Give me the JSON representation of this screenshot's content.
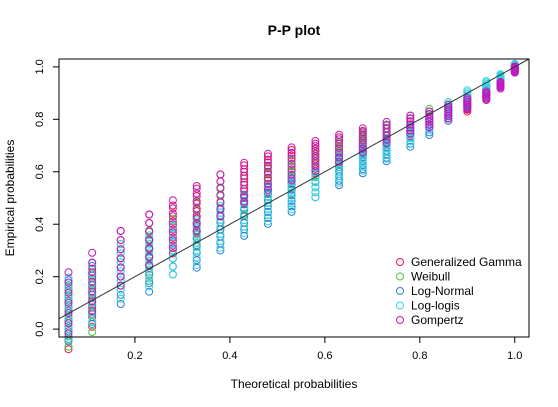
{
  "chart_data": {
    "type": "scatter",
    "title": "P-P plot",
    "xlabel": "Theoretical probabilities",
    "ylabel": "Empirical probabilities",
    "xlim": [
      0.04,
      1.03
    ],
    "ylim": [
      -0.03,
      1.03
    ],
    "x_ticks": [
      "0.2",
      "0.4",
      "0.6",
      "0.8",
      "1.0"
    ],
    "y_ticks": [
      "0.0",
      "0.2",
      "0.4",
      "0.6",
      "0.8",
      "1.0"
    ],
    "grid": false,
    "legend_position": "bottom-right",
    "reference_line": {
      "from": [
        0,
        0
      ],
      "to": [
        1,
        1
      ],
      "color": "#333333"
    },
    "series": [
      {
        "name": "Generalized Gamma",
        "color": "#E8174F",
        "points": [
          [
            0.06,
            0.04
          ],
          [
            0.11,
            0.12
          ],
          [
            0.17,
            0.27
          ],
          [
            0.23,
            0.34
          ],
          [
            0.28,
            0.38
          ],
          [
            0.33,
            0.45
          ],
          [
            0.38,
            0.51
          ],
          [
            0.43,
            0.55
          ],
          [
            0.48,
            0.59
          ],
          [
            0.53,
            0.62
          ],
          [
            0.58,
            0.65
          ],
          [
            0.63,
            0.68
          ],
          [
            0.68,
            0.71
          ],
          [
            0.73,
            0.74
          ],
          [
            0.78,
            0.77
          ],
          [
            0.82,
            0.8
          ],
          [
            0.86,
            0.82
          ],
          [
            0.9,
            0.85
          ],
          [
            0.94,
            0.89
          ],
          [
            0.97,
            0.94
          ],
          [
            1.0,
            1.0
          ]
        ]
      },
      {
        "name": "Weibull",
        "color": "#4CC43A",
        "points": [
          [
            0.06,
            0.05
          ],
          [
            0.11,
            0.1
          ],
          [
            0.17,
            0.22
          ],
          [
            0.23,
            0.28
          ],
          [
            0.28,
            0.33
          ],
          [
            0.33,
            0.4
          ],
          [
            0.38,
            0.46
          ],
          [
            0.43,
            0.51
          ],
          [
            0.48,
            0.55
          ],
          [
            0.53,
            0.58
          ],
          [
            0.58,
            0.62
          ],
          [
            0.63,
            0.66
          ],
          [
            0.68,
            0.7
          ],
          [
            0.73,
            0.74
          ],
          [
            0.78,
            0.78
          ],
          [
            0.82,
            0.81
          ],
          [
            0.86,
            0.84
          ],
          [
            0.9,
            0.87
          ],
          [
            0.94,
            0.9
          ],
          [
            0.97,
            0.94
          ],
          [
            1.0,
            0.99
          ]
        ]
      },
      {
        "name": "Log-Normal",
        "color": "#2F7FD8",
        "points": [
          [
            0.06,
            0.07
          ],
          [
            0.11,
            0.13
          ],
          [
            0.17,
            0.2
          ],
          [
            0.23,
            0.24
          ],
          [
            0.28,
            0.3
          ],
          [
            0.33,
            0.32
          ],
          [
            0.38,
            0.38
          ],
          [
            0.43,
            0.43
          ],
          [
            0.48,
            0.47
          ],
          [
            0.53,
            0.51
          ],
          [
            0.58,
            0.56
          ],
          [
            0.63,
            0.6
          ],
          [
            0.68,
            0.64
          ],
          [
            0.73,
            0.68
          ],
          [
            0.78,
            0.73
          ],
          [
            0.82,
            0.77
          ],
          [
            0.86,
            0.82
          ],
          [
            0.9,
            0.87
          ],
          [
            0.94,
            0.91
          ],
          [
            0.97,
            0.95
          ],
          [
            1.0,
            0.99
          ]
        ]
      },
      {
        "name": "Log-logis",
        "color": "#37D5E3",
        "points": [
          [
            0.06,
            0.08
          ],
          [
            0.11,
            0.14
          ],
          [
            0.17,
            0.22
          ],
          [
            0.23,
            0.26
          ],
          [
            0.28,
            0.3
          ],
          [
            0.33,
            0.33
          ],
          [
            0.38,
            0.39
          ],
          [
            0.43,
            0.44
          ],
          [
            0.48,
            0.48
          ],
          [
            0.53,
            0.52
          ],
          [
            0.58,
            0.56
          ],
          [
            0.63,
            0.61
          ],
          [
            0.68,
            0.65
          ],
          [
            0.73,
            0.69
          ],
          [
            0.78,
            0.74
          ],
          [
            0.82,
            0.79
          ],
          [
            0.86,
            0.84
          ],
          [
            0.9,
            0.89
          ],
          [
            0.94,
            0.93
          ],
          [
            0.97,
            0.96
          ],
          [
            1.0,
            1.0
          ]
        ]
      },
      {
        "name": "Gompertz",
        "color": "#C217C2",
        "points": [
          [
            0.06,
            0.1
          ],
          [
            0.11,
            0.18
          ],
          [
            0.17,
            0.27
          ],
          [
            0.23,
            0.34
          ],
          [
            0.28,
            0.4
          ],
          [
            0.33,
            0.46
          ],
          [
            0.38,
            0.51
          ],
          [
            0.43,
            0.56
          ],
          [
            0.48,
            0.6
          ],
          [
            0.53,
            0.63
          ],
          [
            0.58,
            0.66
          ],
          [
            0.63,
            0.69
          ],
          [
            0.68,
            0.72
          ],
          [
            0.73,
            0.75
          ],
          [
            0.78,
            0.78
          ],
          [
            0.82,
            0.8
          ],
          [
            0.86,
            0.83
          ],
          [
            0.9,
            0.86
          ],
          [
            0.94,
            0.89
          ],
          [
            0.97,
            0.93
          ],
          [
            1.0,
            0.99
          ]
        ]
      }
    ]
  }
}
